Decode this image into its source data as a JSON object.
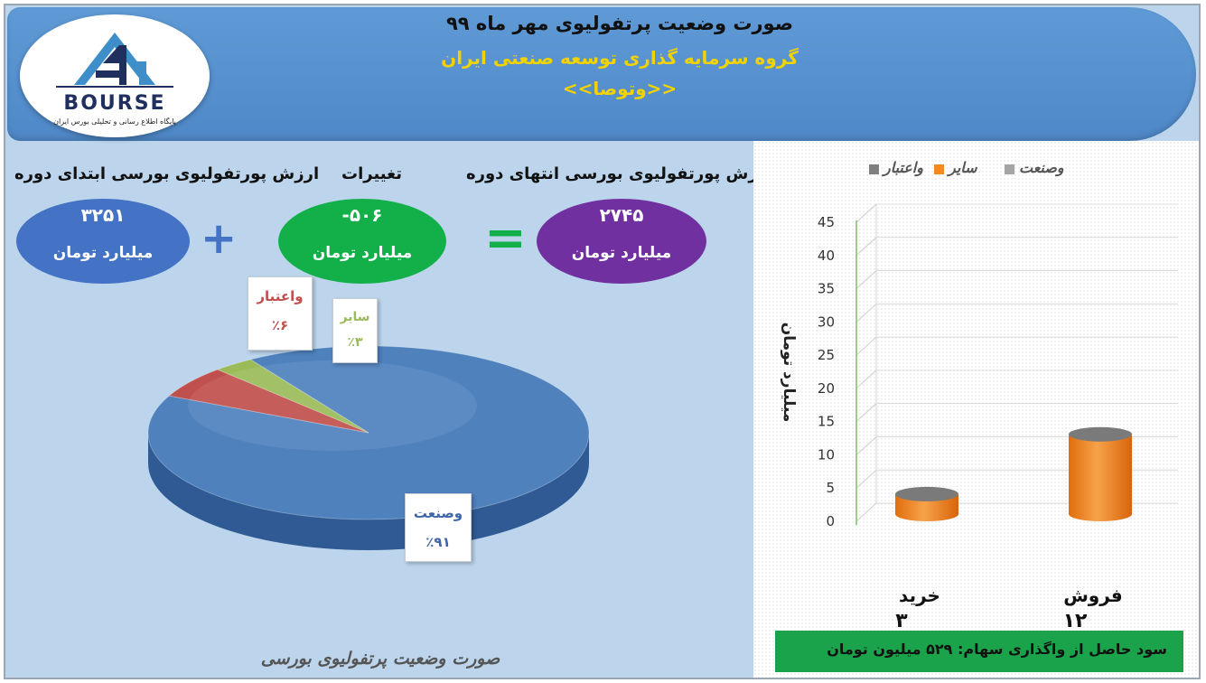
{
  "header": {
    "title": "صورت وضعیت پرتفولیوی مهر ماه ۹۹",
    "subtitle": "گروه سرمایه گذاری توسعه صنعتی ایران",
    "subtitle2": "<<وتوصا>>"
  },
  "logo": {
    "word": "BOURSE",
    "tagline": "پایگاه اطلاع رسانی و تحلیلی بورس ایران"
  },
  "summary": {
    "start_label": "ارزش پورتفولیوی بورسی ابتدای دوره",
    "start_value": "۳۲۵۱",
    "change_label": "تغییرات",
    "change_value": "-۵۰۶",
    "end_label": "ارزش پورتفولیوی بورسی انتهای دوره",
    "end_value": "۲۷۴۵",
    "unit": "میلیارد تومان",
    "plus_sign": "+",
    "equals_sign": "="
  },
  "colors": {
    "start_bubble": "#4472c4",
    "change_bubble": "#13b04a",
    "end_bubble": "#7030a0",
    "operator": "#4472c4",
    "equals": "#13b04a",
    "pie_sanat": "#4f81bd",
    "pie_etebar": "#c0504d",
    "pie_sayer": "#9bbb59",
    "bar_orange": "#f28a1d"
  },
  "chart_data": [
    {
      "type": "pie",
      "title": "صورت وضعیت پرتفولیوی بورسی",
      "labels": [
        "وصنعت",
        "واعتبار",
        "سایر"
      ],
      "values": [
        91,
        6,
        3
      ],
      "value_labels": [
        "٪۹۱",
        "٪۶",
        "٪۳"
      ],
      "style": "3d"
    },
    {
      "type": "bar",
      "style": "3d-cylinder",
      "categories": [
        "خرید",
        "فروش"
      ],
      "category_values_text": [
        "۳",
        "۱۲"
      ],
      "series": [
        {
          "name": "وصنعت",
          "values": [
            0,
            0
          ]
        },
        {
          "name": "سایر",
          "values": [
            3,
            12
          ]
        },
        {
          "name": "واعتبار",
          "values": [
            0,
            0
          ]
        }
      ],
      "ylabel": "میلیارد تومان",
      "ylim": [
        0,
        45
      ],
      "yticks": [
        0,
        5,
        10,
        15,
        20,
        25,
        30,
        35,
        40,
        45
      ],
      "legend_position": "top",
      "legend_colors": [
        "#a5a5a5",
        "#f28a1d",
        "#7f7f7f"
      ]
    }
  ],
  "profit": {
    "text": "سود حاصل از واگذاری سهام: ۵۲۹ میلیون تومان"
  }
}
